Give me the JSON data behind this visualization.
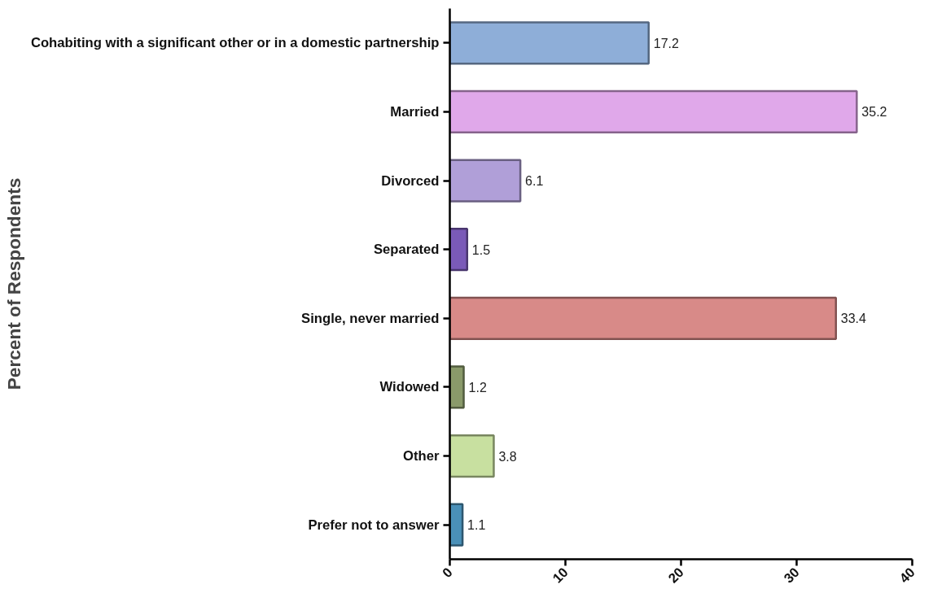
{
  "chart_data": {
    "type": "bar",
    "orientation": "horizontal",
    "ylabel": "Percent of Respondents",
    "categories": [
      "Cohabiting with a significant other or in a domestic partnership",
      "Married",
      "Divorced",
      "Separated",
      "Single, never married",
      "Widowed",
      "Other",
      "Prefer not to answer"
    ],
    "values": [
      17.2,
      35.2,
      6.1,
      1.5,
      33.4,
      1.2,
      3.8,
      1.1
    ],
    "colors": [
      "#8eaed8",
      "#e0a8ea",
      "#b09fd8",
      "#7a5ab8",
      "#d88a88",
      "#8a9a6a",
      "#c8e0a0",
      "#4a90b8"
    ],
    "xlim": [
      0,
      40
    ],
    "xticks": [
      0,
      10,
      20,
      30,
      40
    ],
    "data_labels": true,
    "grid": false
  }
}
